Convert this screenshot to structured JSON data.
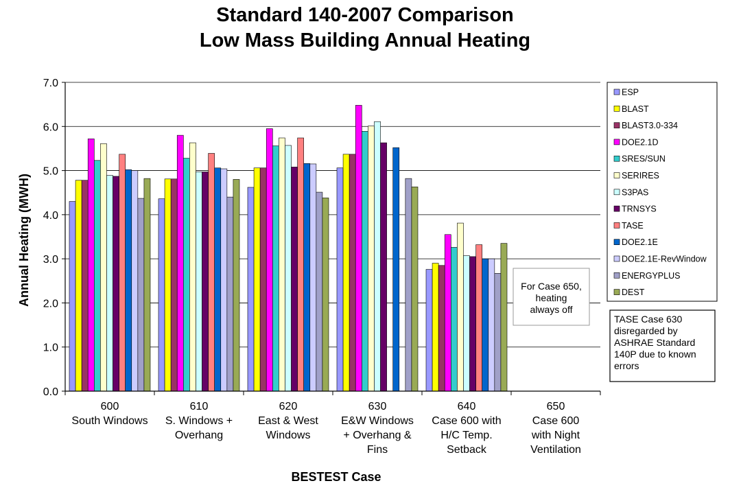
{
  "chart_data": {
    "type": "bar",
    "title": [
      "Standard 140-2007 Comparison",
      "Low Mass Building Annual Heating"
    ],
    "xlabel": "BESTEST Case",
    "ylabel": "Annual Heating (MWH)",
    "ylim": [
      0,
      7
    ],
    "ytick_step": 1,
    "ytick_labels": [
      "0.0",
      "1.0",
      "2.0",
      "3.0",
      "4.0",
      "5.0",
      "6.0",
      "7.0"
    ],
    "grid": true,
    "legend_position": "right",
    "categories": [
      [
        "600",
        "South Windows"
      ],
      [
        "610",
        "S. Windows +",
        "Overhang"
      ],
      [
        "620",
        "East & West",
        "Windows"
      ],
      [
        "630",
        "E&W Windows",
        "+ Overhang &",
        "Fins"
      ],
      [
        "640",
        "Case 600 with",
        "H/C Temp.",
        "Setback"
      ],
      [
        "650",
        "Case 600",
        "with Night",
        "Ventilation"
      ]
    ],
    "series": [
      {
        "name": "ESP",
        "color": "#9999FF",
        "values": [
          4.3,
          4.36,
          4.62,
          5.06,
          2.76,
          0
        ]
      },
      {
        "name": "BLAST",
        "color": "#FFFF00",
        "values": [
          4.78,
          4.81,
          5.06,
          5.37,
          2.9,
          0
        ]
      },
      {
        "name": "BLAST3.0-334",
        "color": "#993366",
        "values": [
          4.78,
          4.81,
          5.06,
          5.37,
          2.85,
          0
        ]
      },
      {
        "name": "DOE2.1D",
        "color": "#FF00FF",
        "values": [
          5.72,
          5.8,
          5.95,
          6.48,
          3.55,
          0
        ]
      },
      {
        "name": "SRES/SUN",
        "color": "#33CCCC",
        "values": [
          5.23,
          5.28,
          5.56,
          5.89,
          3.26,
          0
        ]
      },
      {
        "name": "SERIRES",
        "color": "#FFFFCC",
        "values": [
          5.61,
          5.63,
          5.74,
          6.01,
          3.81,
          0
        ]
      },
      {
        "name": "S3PAS",
        "color": "#CCFFFF",
        "values": [
          4.89,
          4.97,
          5.57,
          6.11,
          3.07,
          0
        ]
      },
      {
        "name": "TRNSYS",
        "color": "#660066",
        "values": [
          4.87,
          4.97,
          5.08,
          5.63,
          3.05,
          0
        ]
      },
      {
        "name": "TASE",
        "color": "#FF8080",
        "values": [
          5.37,
          5.39,
          5.74,
          null,
          3.32,
          0
        ]
      },
      {
        "name": "DOE2.1E",
        "color": "#0066CC",
        "values": [
          5.02,
          5.06,
          5.16,
          5.52,
          3.0,
          0
        ]
      },
      {
        "name": "DOE2.1E-RevWindow",
        "color": "#CCCCFF",
        "values": [
          5.0,
          5.04,
          5.15,
          null,
          3.0,
          0
        ]
      },
      {
        "name": "ENERGYPLUS",
        "color": "#A0A0C8",
        "values": [
          4.37,
          4.4,
          4.51,
          4.82,
          2.67,
          0
        ]
      },
      {
        "name": "DEST",
        "color": "#99AA55",
        "values": [
          4.82,
          4.8,
          4.38,
          4.63,
          3.35,
          null
        ]
      }
    ]
  },
  "notes": {
    "case650": [
      "For Case 650,",
      "heating",
      "always off"
    ],
    "tase": [
      "TASE Case 630",
      "disregarded by",
      "ASHRAE Standard",
      "140P due to  known",
      "errors"
    ]
  }
}
